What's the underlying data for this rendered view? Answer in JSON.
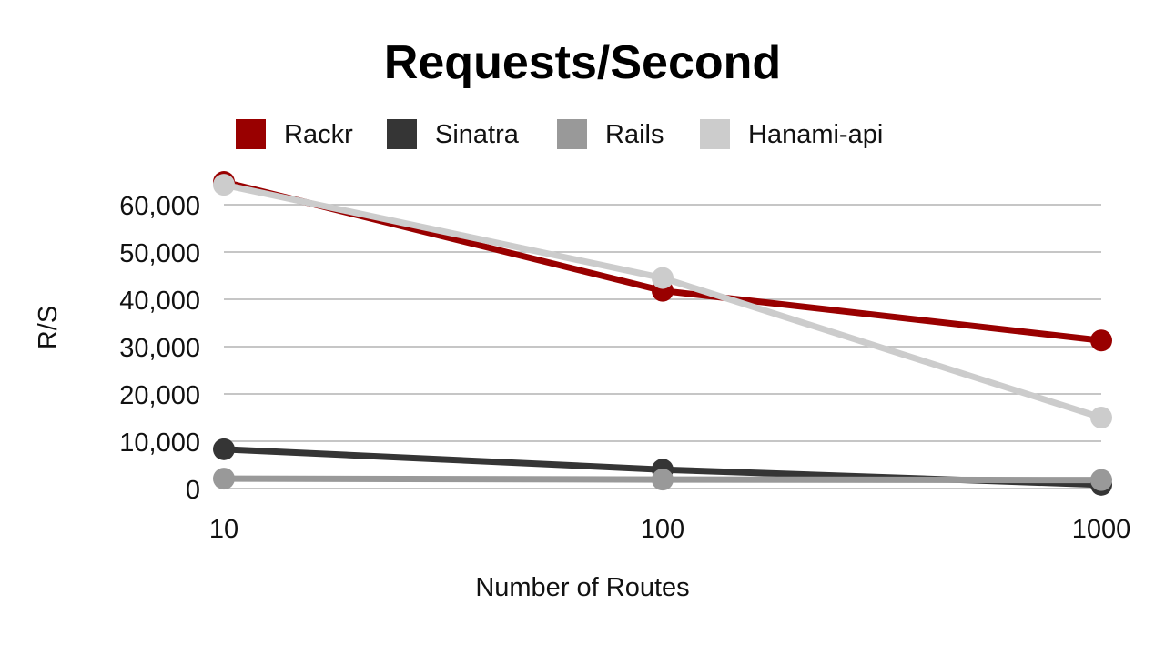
{
  "chart_data": {
    "type": "line",
    "title": "Requests/Second",
    "xlabel": "Number of Routes",
    "ylabel": "R/S",
    "x": [
      "10",
      "100",
      "1000"
    ],
    "x_scale": "log",
    "ylim": [
      0,
      60000
    ],
    "yticks": [
      0,
      10000,
      20000,
      30000,
      40000,
      50000,
      60000
    ],
    "ytick_labels": [
      "0",
      "10,000",
      "20,000",
      "30,000",
      "40,000",
      "50,000",
      "60,000"
    ],
    "grid": true,
    "legend_position": "top",
    "series": [
      {
        "name": "Rackr",
        "color": "#990000",
        "values": [
          64800,
          41800,
          31300
        ]
      },
      {
        "name": "Sinatra",
        "color": "#353535",
        "values": [
          8300,
          4000,
          800
        ]
      },
      {
        "name": "Rails",
        "color": "#999999",
        "values": [
          2100,
          1900,
          1800
        ]
      },
      {
        "name": "Hanami-api",
        "color": "#cccccc",
        "values": [
          64200,
          44500,
          15000
        ]
      }
    ]
  }
}
